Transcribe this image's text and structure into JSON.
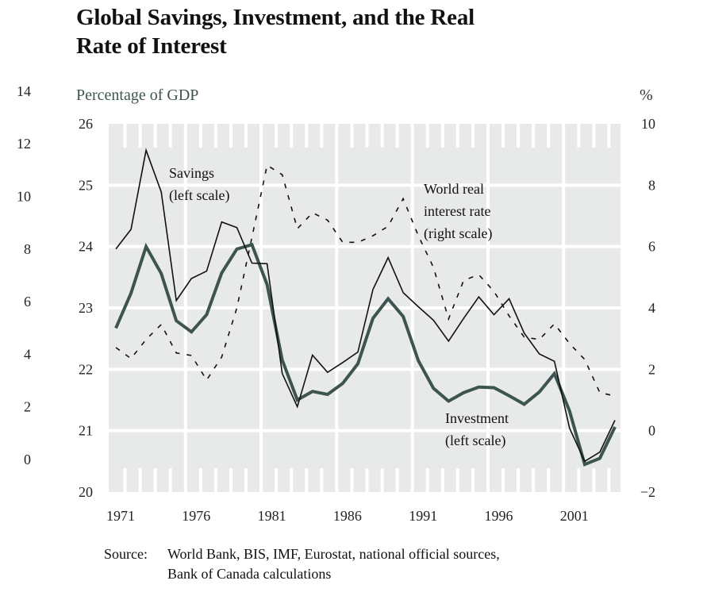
{
  "title_lines": [
    "Global Savings, Investment, and the Real",
    "Rate of Interest"
  ],
  "left_unit_label": "Percentage of GDP",
  "right_unit_label": "%",
  "source_label": "Source:",
  "source_lines": [
    "World Bank, BIS, IMF, Eurostat, national official sources,",
    "Bank of Canada calculations"
  ],
  "colors": {
    "background": "#e8eae9",
    "investment": "#3d5450",
    "savings": "#111111",
    "interest": "#111111",
    "unit_label": "#3d5450"
  },
  "chart_data": {
    "type": "line",
    "title": "Global Savings, Investment, and the Real Rate of Interest",
    "xlabel": "",
    "ylabel": "Percentage of GDP",
    "y2label": "%",
    "x": [
      1971,
      1972,
      1973,
      1974,
      1975,
      1976,
      1977,
      1978,
      1979,
      1980,
      1981,
      1982,
      1983,
      1984,
      1985,
      1986,
      1987,
      1988,
      1989,
      1990,
      1991,
      1992,
      1993,
      1994,
      1995,
      1996,
      1997,
      1998,
      1999,
      2000,
      2001,
      2002,
      2003,
      2004
    ],
    "x_tick_labels": [
      "1971",
      "1976",
      "1981",
      "1986",
      "1991",
      "1996",
      "2001"
    ],
    "ylim": [
      20,
      26
    ],
    "y_ticks": [
      "20",
      "21",
      "22",
      "23",
      "24",
      "25",
      "26"
    ],
    "y2lim": [
      -2,
      10
    ],
    "y2_ticks": [
      "−2",
      "0",
      "2",
      "4",
      "6",
      "8",
      "10"
    ],
    "extra_left_ticks": [
      "0",
      "2",
      "4",
      "6",
      "8",
      "10",
      "12",
      "14"
    ],
    "grid": true,
    "series": [
      {
        "name": "Savings",
        "axis": "left",
        "style": "thin-solid",
        "values": [
          23.96,
          24.28,
          25.57,
          24.89,
          23.12,
          23.48,
          23.6,
          24.4,
          24.31,
          23.73,
          23.72,
          21.93,
          21.39,
          22.23,
          21.95,
          22.11,
          22.28,
          23.3,
          23.82,
          23.25,
          23.02,
          22.8,
          22.46,
          22.83,
          23.18,
          22.89,
          23.15,
          22.59,
          22.25,
          22.13,
          21.04,
          20.5,
          20.65,
          21.17
        ]
      },
      {
        "name": "Investment",
        "axis": "left",
        "style": "thick-solid",
        "values": [
          22.67,
          23.24,
          24.0,
          23.56,
          22.79,
          22.61,
          22.89,
          23.57,
          23.96,
          24.03,
          23.38,
          22.15,
          21.5,
          21.64,
          21.59,
          21.77,
          22.09,
          22.83,
          23.15,
          22.86,
          22.14,
          21.69,
          21.48,
          21.62,
          21.71,
          21.7,
          21.57,
          21.43,
          21.63,
          21.93,
          21.32,
          20.45,
          20.55,
          21.06
        ]
      },
      {
        "name": "World real interest rate",
        "axis": "right",
        "style": "dashed",
        "values": [
          2.71,
          2.35,
          2.97,
          3.46,
          2.53,
          2.45,
          1.65,
          2.4,
          4.0,
          6.3,
          8.65,
          8.34,
          6.58,
          7.1,
          6.86,
          6.14,
          6.14,
          6.35,
          6.66,
          7.56,
          6.35,
          5.32,
          3.64,
          4.9,
          5.08,
          4.54,
          3.74,
          3.05,
          2.97,
          3.48,
          2.84,
          2.32,
          1.24,
          1.13
        ]
      }
    ],
    "annotations": [
      {
        "series": "Savings",
        "lines": [
          "Savings",
          "(left scale)"
        ]
      },
      {
        "series": "World real interest rate",
        "lines": [
          "World real",
          "interest rate",
          "(right scale)"
        ]
      },
      {
        "series": "Investment",
        "lines": [
          "Investment",
          "(left scale)"
        ]
      }
    ],
    "legend": "none"
  }
}
